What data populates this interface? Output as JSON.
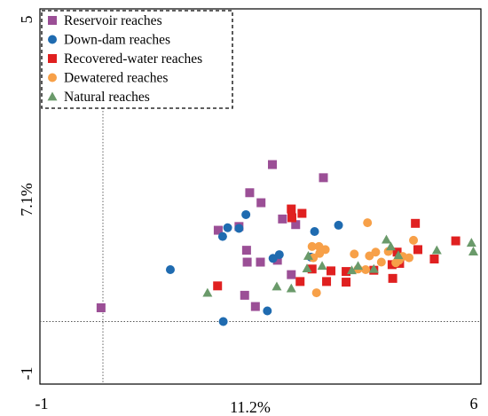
{
  "chart_data": {
    "type": "scatter",
    "title": "",
    "xlabel": "11.2%",
    "ylabel": "7.1%",
    "xlim": [
      -1,
      6
    ],
    "ylim": [
      -1,
      5
    ],
    "x_ticks": [
      -1,
      6
    ],
    "x_tick_labels": [
      "-1",
      "6"
    ],
    "y_ticks": [
      -1,
      5
    ],
    "y_tick_labels": [
      "-1",
      "5"
    ],
    "grid": false,
    "legend_position": "top-left",
    "reference_lines": {
      "x": 0,
      "y": 0
    },
    "series": [
      {
        "name": "Reservoir reaches",
        "marker": "square",
        "color": "#9b4f96",
        "points": [
          [
            -0.03,
            0.22
          ],
          [
            2.69,
            2.51
          ],
          [
            3.5,
            2.3
          ],
          [
            2.33,
            2.06
          ],
          [
            2.51,
            1.9
          ],
          [
            2.85,
            1.64
          ],
          [
            3.06,
            1.55
          ],
          [
            1.83,
            1.46
          ],
          [
            2.16,
            1.52
          ],
          [
            2.28,
            1.14
          ],
          [
            2.77,
            0.98
          ],
          [
            2.29,
            0.95
          ],
          [
            2.5,
            0.95
          ],
          [
            2.99,
            0.75
          ],
          [
            2.25,
            0.42
          ],
          [
            2.42,
            0.24
          ]
        ]
      },
      {
        "name": "Down-dam reaches",
        "marker": "circle",
        "color": "#1f6bb0",
        "points": [
          [
            2.27,
            1.71
          ],
          [
            1.98,
            1.5
          ],
          [
            2.16,
            1.49
          ],
          [
            1.9,
            1.36
          ],
          [
            3.74,
            1.54
          ],
          [
            3.36,
            1.44
          ],
          [
            2.8,
            1.07
          ],
          [
            2.7,
            1.01
          ],
          [
            3.3,
            1.03
          ],
          [
            1.07,
            0.83
          ],
          [
            2.61,
            0.17
          ],
          [
            1.91,
            0
          ]
        ]
      },
      {
        "name": "Recovered-water reaches",
        "marker": "square",
        "color": "#e02020",
        "points": [
          [
            2.99,
            1.8
          ],
          [
            3.16,
            1.73
          ],
          [
            3.0,
            1.66
          ],
          [
            4.96,
            1.57
          ],
          [
            5.6,
            1.29
          ],
          [
            4.67,
            1.11
          ],
          [
            5.0,
            1.15
          ],
          [
            5.26,
            1.0
          ],
          [
            4.71,
            0.93
          ],
          [
            4.59,
            0.91
          ],
          [
            3.32,
            0.84
          ],
          [
            3.62,
            0.81
          ],
          [
            3.86,
            0.8
          ],
          [
            4.3,
            0.82
          ],
          [
            3.13,
            0.64
          ],
          [
            3.55,
            0.64
          ],
          [
            3.86,
            0.63
          ],
          [
            4.6,
            0.69
          ],
          [
            1.82,
            0.57
          ]
        ]
      },
      {
        "name": "Dewatered reaches",
        "marker": "circle",
        "color": "#f7a048",
        "points": [
          [
            4.2,
            1.58
          ],
          [
            4.93,
            1.3
          ],
          [
            3.32,
            1.2
          ],
          [
            3.43,
            1.2
          ],
          [
            3.53,
            1.15
          ],
          [
            3.44,
            1.09
          ],
          [
            3.34,
            1.02
          ],
          [
            4.53,
            1.12
          ],
          [
            4.33,
            1.11
          ],
          [
            3.99,
            1.08
          ],
          [
            4.23,
            1.05
          ],
          [
            4.76,
            1.04
          ],
          [
            4.86,
            1.02
          ],
          [
            4.7,
            0.98
          ],
          [
            4.42,
            0.95
          ],
          [
            4.65,
            0.94
          ],
          [
            4.05,
            0.84
          ],
          [
            4.17,
            0.83
          ],
          [
            3.39,
            0.46
          ]
        ]
      },
      {
        "name": "Natural reaches",
        "marker": "triangle",
        "color": "#6a9a6a",
        "points": [
          [
            4.5,
            1.31
          ],
          [
            5.85,
            1.26
          ],
          [
            4.57,
            1.2
          ],
          [
            5.3,
            1.14
          ],
          [
            5.88,
            1.12
          ],
          [
            3.26,
            1.05
          ],
          [
            4.69,
            1.06
          ],
          [
            4.05,
            0.89
          ],
          [
            3.48,
            0.89
          ],
          [
            4.3,
            0.84
          ],
          [
            3.95,
            0.82
          ],
          [
            3.24,
            0.85
          ],
          [
            2.76,
            0.56
          ],
          [
            2.99,
            0.53
          ],
          [
            1.66,
            0.46
          ]
        ]
      }
    ]
  }
}
